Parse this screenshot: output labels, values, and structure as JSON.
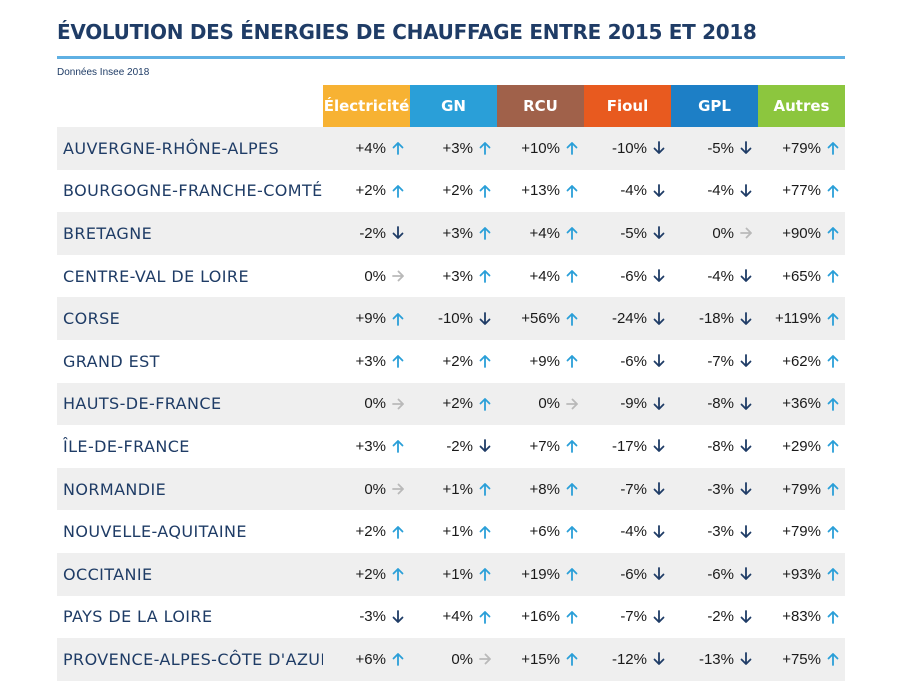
{
  "title": "ÉVOLUTION DES ÉNERGIES DE CHAUFFAGE ENTRE 2015 ET 2018",
  "source": "Données Insee 2018",
  "colors": {
    "accent_rule": "#5fb0e3",
    "arrow_up": "#2a9fd8",
    "arrow_down": "#1f3c66",
    "arrow_flat": "#b9b9b9"
  },
  "chart_data": {
    "type": "table",
    "title": "ÉVOLUTION DES ÉNERGIES DE CHAUFFAGE ENTRE 2015 ET 2018",
    "subtitle": "Données Insee 2018",
    "columns": [
      {
        "label": "Électricité",
        "color": "#f7b233"
      },
      {
        "label": "GN",
        "color": "#2a9fd8"
      },
      {
        "label": "RCU",
        "color": "#a0614a"
      },
      {
        "label": "Fioul",
        "color": "#e85a1f"
      },
      {
        "label": "GPL",
        "color": "#1d7fc6"
      },
      {
        "label": "Autres",
        "color": "#8cc63e"
      }
    ],
    "rows": [
      {
        "region": "AUVERGNE-RHÔNE-ALPES",
        "values": [
          "+4%",
          "+3%",
          "+10%",
          "-10%",
          "-5%",
          "+79%"
        ],
        "trend": [
          "up",
          "up",
          "up",
          "down",
          "down",
          "up"
        ]
      },
      {
        "region": "BOURGOGNE-FRANCHE-COMTÉ",
        "values": [
          "+2%",
          "+2%",
          "+13%",
          "-4%",
          "-4%",
          "+77%"
        ],
        "trend": [
          "up",
          "up",
          "up",
          "down",
          "down",
          "up"
        ]
      },
      {
        "region": "BRETAGNE",
        "values": [
          "-2%",
          "+3%",
          "+4%",
          "-5%",
          "0%",
          "+90%"
        ],
        "trend": [
          "down",
          "up",
          "up",
          "down",
          "flat",
          "up"
        ]
      },
      {
        "region": "CENTRE-VAL DE LOIRE",
        "values": [
          "0%",
          "+3%",
          "+4%",
          "-6%",
          "-4%",
          "+65%"
        ],
        "trend": [
          "flat",
          "up",
          "up",
          "down",
          "down",
          "up"
        ]
      },
      {
        "region": "CORSE",
        "values": [
          "+9%",
          "-10%",
          "+56%",
          "-24%",
          "-18%",
          "+119%"
        ],
        "trend": [
          "up",
          "down",
          "up",
          "down",
          "down",
          "up"
        ]
      },
      {
        "region": "GRAND EST",
        "values": [
          "+3%",
          "+2%",
          "+9%",
          "-6%",
          "-7%",
          "+62%"
        ],
        "trend": [
          "up",
          "up",
          "up",
          "down",
          "down",
          "up"
        ]
      },
      {
        "region": "HAUTS-DE-FRANCE",
        "values": [
          "0%",
          "+2%",
          "0%",
          "-9%",
          "-8%",
          "+36%"
        ],
        "trend": [
          "flat",
          "up",
          "flat",
          "down",
          "down",
          "up"
        ]
      },
      {
        "region": "ÎLE-DE-FRANCE",
        "values": [
          "+3%",
          "-2%",
          "+7%",
          "-17%",
          "-8%",
          "+29%"
        ],
        "trend": [
          "up",
          "down",
          "up",
          "down",
          "down",
          "up"
        ]
      },
      {
        "region": "NORMANDIE",
        "values": [
          "0%",
          "+1%",
          "+8%",
          "-7%",
          "-3%",
          "+79%"
        ],
        "trend": [
          "flat",
          "up",
          "up",
          "down",
          "down",
          "up"
        ]
      },
      {
        "region": "NOUVELLE-AQUITAINE",
        "values": [
          "+2%",
          "+1%",
          "+6%",
          "-4%",
          "-3%",
          "+79%"
        ],
        "trend": [
          "up",
          "up",
          "up",
          "down",
          "down",
          "up"
        ]
      },
      {
        "region": "OCCITANIE",
        "values": [
          "+2%",
          "+1%",
          "+19%",
          "-6%",
          "-6%",
          "+93%"
        ],
        "trend": [
          "up",
          "up",
          "up",
          "down",
          "down",
          "up"
        ]
      },
      {
        "region": "PAYS DE LA LOIRE",
        "values": [
          "-3%",
          "+4%",
          "+16%",
          "-7%",
          "-2%",
          "+83%"
        ],
        "trend": [
          "down",
          "up",
          "up",
          "down",
          "down",
          "up"
        ]
      },
      {
        "region": "PROVENCE-ALPES-CÔTE D'AZUR",
        "values": [
          "+6%",
          "0%",
          "+15%",
          "-12%",
          "-13%",
          "+75%"
        ],
        "trend": [
          "up",
          "flat",
          "up",
          "down",
          "down",
          "up"
        ]
      }
    ]
  }
}
